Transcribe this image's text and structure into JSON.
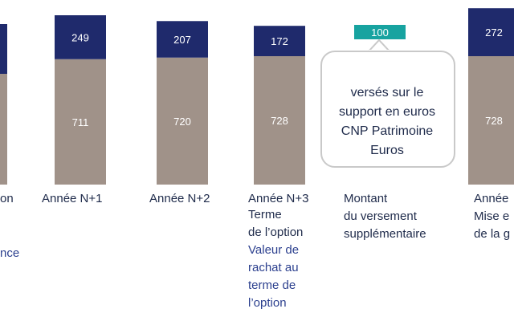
{
  "chart_data": {
    "type": "bar",
    "stacked": true,
    "categories": [
      "",
      "Année N+1",
      "Année N+2",
      "Année N+3",
      "Montant",
      "Année"
    ],
    "category_sublabels": [
      [],
      [],
      [],
      [
        "Terme",
        "de l’option"
      ],
      [
        "du versement",
        "supplémentaire"
      ],
      [
        "Mise e",
        "de la g"
      ]
    ],
    "series": [
      {
        "values": [
          null,
          711,
          720,
          728,
          null,
          728
        ],
        "color": "#a09289"
      },
      {
        "values": [
          null,
          249,
          207,
          172,
          null,
          272
        ],
        "color": "#1f2a6c"
      }
    ],
    "extra_value": {
      "label": "100",
      "color": "#17a3a0"
    },
    "annotation": [
      "versés sur le",
      "support en euros",
      "CNP Patrimoine",
      "Euros"
    ],
    "side_note": [
      "Valeur de",
      "rachat au",
      "terme de",
      "l’option"
    ],
    "partial_labels": [
      "on",
      "nce"
    ]
  }
}
